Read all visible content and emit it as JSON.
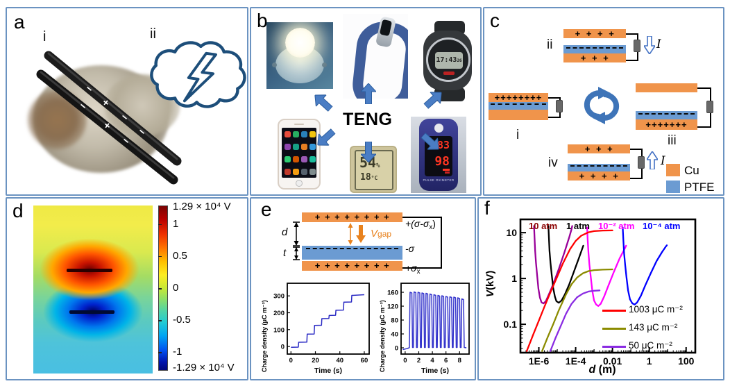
{
  "figure_type": "multi-panel scientific figure",
  "colors": {
    "panel_border": "#6b93c1",
    "cu_orange": "#F0944B",
    "ptfe_blue": "#6B9BD2",
    "arrow_blue": "#4a7dc4",
    "cycle_blue": "#3E74B8",
    "cloud_navy": "#1d4e7a",
    "vgap_orange": "#e8821e"
  },
  "panel_a": {
    "label": "a",
    "sub_i": "i",
    "sub_ii": "ii",
    "rod_charge_minus": "−",
    "rod_charge_plus": "+"
  },
  "panel_b": {
    "label": "b",
    "center_label": "TENG",
    "watch_time": "17:43",
    "watch_seconds": "26",
    "hygro_humidity": "54",
    "hygro_percent": "%",
    "hygro_temp": "18",
    "hygro_unit": "°C",
    "oxi_pulse": "83",
    "oxi_spo2": "98",
    "oxi_label": "PULSE OXIMETER",
    "phone_icon_colors": [
      "#e74c3c",
      "#27ae60",
      "#2980b9",
      "#f1c40f",
      "#8e44ad",
      "#16a085",
      "#e67e22",
      "#3498db",
      "#2ecc71",
      "#d35400",
      "#9b59b6",
      "#1abc9c",
      "#c0392b",
      "#f39c12",
      "#55606c",
      "#7f8c8d"
    ]
  },
  "panel_c": {
    "label": "c",
    "current_label": "I",
    "legend": [
      {
        "label": "Cu",
        "color": "#F0944B"
      },
      {
        "label": "PTFE",
        "color": "#6B9BD2"
      }
    ],
    "states": {
      "i": {
        "label": "i",
        "top_charges": "++++++++"
      },
      "ii": {
        "label": "ii",
        "top_charges": "+ + + +",
        "bottom_charges": "+ + +"
      },
      "iii": {
        "label": "iii",
        "bottom_charges": "+++++++"
      },
      "iv": {
        "label": "iv",
        "top_charges": "+ + +",
        "bottom_charges": "+ + + +"
      }
    }
  },
  "panel_d": {
    "label": "d",
    "colorbar": {
      "top_label": "1.29 × 10⁴ V",
      "tick_labels": [
        "1",
        "0.5",
        "0",
        "-0.5",
        "-1"
      ],
      "bottom_label": "-1.29 × 10⁴ V"
    }
  },
  "panel_e": {
    "label": "e",
    "schematic": {
      "top_charges": "+ + + + + + + +",
      "bottom_charges": "+ + + + + + + +",
      "d_label": "d",
      "t_label": "t",
      "gap_v": "V",
      "gap_sub": "gap",
      "top_label_pre": "+(σ-σ",
      "top_label_sub": "x",
      "top_label_post": ")",
      "mid_label": "-σ",
      "bottom_label_pre": "+σ",
      "bottom_label_sub": "x"
    }
  },
  "chart_data": [
    {
      "id": "charge-steps",
      "type": "line",
      "xlabel": "Time (s)",
      "ylabel": "Charge density (μC m⁻²)",
      "xlim": [
        -3,
        64
      ],
      "ylim": [
        -45,
        375
      ],
      "xticks": [
        0,
        20,
        40,
        60
      ],
      "yticks": [
        0,
        100,
        200,
        300
      ],
      "series": [
        {
          "name": "charge-density-steps",
          "color": "#2b2bc4",
          "points": [
            [
              0,
              -5
            ],
            [
              6,
              -4
            ],
            [
              6.3,
              25
            ],
            [
              13,
              26
            ],
            [
              13.3,
              73
            ],
            [
              19,
              74
            ],
            [
              19.3,
              125
            ],
            [
              25,
              126
            ],
            [
              25.3,
              165
            ],
            [
              31,
              166
            ],
            [
              31.3,
              184
            ],
            [
              36.5,
              185
            ],
            [
              36.8,
              215
            ],
            [
              43,
              216
            ],
            [
              43.3,
              263
            ],
            [
              49.5,
              264
            ],
            [
              49.8,
              303
            ],
            [
              60,
              307
            ]
          ]
        }
      ]
    },
    {
      "id": "charge-pulses",
      "type": "line",
      "xlabel": "Time (s)",
      "ylabel": "Charge density (μC m⁻²)",
      "xlim": [
        -0.6,
        9.4
      ],
      "ylim": [
        -18,
        186
      ],
      "xticks": [
        0,
        2,
        4,
        6,
        8
      ],
      "yticks": [
        0,
        40,
        80,
        120,
        160
      ],
      "pulse_series": {
        "name": "charge-density-pulses",
        "color": "#3535cc",
        "baseline": 0,
        "start": 0.62,
        "period": 0.585,
        "rise": 0.1,
        "high": 0.26,
        "fall": 0.1,
        "peaks": [
          160,
          161,
          160,
          158,
          157,
          155,
          153,
          151,
          150,
          148,
          147,
          146,
          144,
          141
        ]
      }
    },
    {
      "id": "voltage-vs-gap",
      "type": "line",
      "xscale": "log",
      "yscale": "log",
      "xlabel": "d (m)",
      "ylabel": "V(kV)",
      "xlim": [
        1e-07,
        316
      ],
      "ylim": [
        0.024,
        19.5
      ],
      "xticks": [
        {
          "v": 1e-06,
          "label": "1E-6"
        },
        {
          "v": 0.0001,
          "label": "1E-4"
        },
        {
          "v": 0.01,
          "label": "0.01"
        },
        {
          "v": 1,
          "label": "1"
        },
        {
          "v": 100,
          "label": "100"
        }
      ],
      "yticks": [
        {
          "v": 0.1,
          "label": "0.1"
        },
        {
          "v": 1,
          "label": "1"
        },
        {
          "v": 10,
          "label": "10"
        }
      ],
      "pressure_labels": [
        {
          "text": "10 atm",
          "color": "#8b0000"
        },
        {
          "text": "1 atm",
          "color": "#000000"
        },
        {
          "text": "10⁻² atm",
          "color": "#ff00ff"
        },
        {
          "text": "10⁻⁴ atm",
          "color": "#0000ff"
        }
      ],
      "legend": [
        {
          "label": "1003 μC m⁻²",
          "color": "#ff0000"
        },
        {
          "label": "143 μC m⁻²",
          "color": "#8b8b00"
        },
        {
          "label": "50 μC m⁻²",
          "color": "#8a2be2"
        }
      ],
      "series": [
        {
          "name": "paschen-10atm",
          "color": "#990099",
          "points": [
            [
              5.5e-07,
              14
            ],
            [
              5.8e-07,
              8
            ],
            [
              6.3e-07,
              4
            ],
            [
              7e-07,
              2.2
            ],
            [
              8e-07,
              1.2
            ],
            [
              9.5e-07,
              0.6
            ],
            [
              1.15e-06,
              0.38
            ],
            [
              1.4e-06,
              0.3
            ],
            [
              1.8e-06,
              0.285
            ],
            [
              2.4e-06,
              0.32
            ],
            [
              3.5e-06,
              0.45
            ],
            [
              6e-06,
              0.75
            ],
            [
              1.2e-05,
              1.6
            ],
            [
              2.5e-05,
              3.8
            ],
            [
              4.5e-05,
              8
            ],
            [
              6e-05,
              12
            ],
            [
              6.5e-05,
              14
            ]
          ]
        },
        {
          "name": "paschen-1atm",
          "color": "#000000",
          "points": [
            [
              3.3e-06,
              14
            ],
            [
              3.5e-06,
              8
            ],
            [
              3.8e-06,
              4
            ],
            [
              4.3e-06,
              2.2
            ],
            [
              5e-06,
              1.2
            ],
            [
              6e-06,
              0.62
            ],
            [
              7.5e-06,
              0.4
            ],
            [
              9e-06,
              0.32
            ],
            [
              1.2e-05,
              0.295
            ],
            [
              1.7e-05,
              0.33
            ],
            [
              2.6e-05,
              0.45
            ],
            [
              4.5e-05,
              0.75
            ],
            [
              8e-05,
              1.4
            ],
            [
              0.00015,
              2.8
            ],
            [
              0.00022,
              4.3
            ],
            [
              0.00026,
              5.2
            ]
          ]
        },
        {
          "name": "paschen-0.01atm",
          "color": "#ff00ff",
          "points": [
            [
              0.00042,
              13
            ],
            [
              0.00045,
              7
            ],
            [
              0.0005,
              3.5
            ],
            [
              0.00056,
              2
            ],
            [
              0.00066,
              1.1
            ],
            [
              0.0008,
              0.55
            ],
            [
              0.001,
              0.33
            ],
            [
              0.0013,
              0.27
            ],
            [
              0.0017,
              0.25
            ],
            [
              0.0023,
              0.28
            ],
            [
              0.0035,
              0.4
            ],
            [
              0.006,
              0.7
            ],
            [
              0.012,
              1.4
            ],
            [
              0.025,
              2.8
            ],
            [
              0.045,
              4.4
            ],
            [
              0.055,
              5.2
            ]
          ]
        },
        {
          "name": "paschen-0.0001atm",
          "color": "#0000ff",
          "points": [
            [
              0.036,
              13
            ],
            [
              0.039,
              7
            ],
            [
              0.043,
              3.5
            ],
            [
              0.049,
              2
            ],
            [
              0.057,
              1.1
            ],
            [
              0.07,
              0.55
            ],
            [
              0.09,
              0.35
            ],
            [
              0.12,
              0.285
            ],
            [
              0.16,
              0.27
            ],
            [
              0.22,
              0.3
            ],
            [
              0.35,
              0.42
            ],
            [
              0.6,
              0.7
            ],
            [
              1.2,
              1.3
            ],
            [
              2.5,
              2.4
            ],
            [
              5,
              3.8
            ],
            [
              8,
              5
            ],
            [
              9,
              5.3
            ]
          ]
        },
        {
          "name": "vgap-1003uCm2",
          "color": "#ff0000",
          "points": [
            [
              2.2e-07,
              0.026
            ],
            [
              5e-07,
              0.06
            ],
            [
              1e-06,
              0.12
            ],
            [
              2e-06,
              0.24
            ],
            [
              5e-06,
              0.58
            ],
            [
              1e-05,
              1.1
            ],
            [
              2e-05,
              2.1
            ],
            [
              5e-05,
              4.4
            ],
            [
              0.0001,
              6.6
            ],
            [
              0.0002,
              8.6
            ],
            [
              0.0005,
              10.2
            ],
            [
              0.001,
              10.8
            ],
            [
              0.003,
              11.1
            ],
            [
              0.01,
              11.2
            ]
          ]
        },
        {
          "name": "vgap-143uCm2",
          "color": "#8b8b00",
          "points": [
            [
              1.5e-06,
              0.026
            ],
            [
              3e-06,
              0.052
            ],
            [
              6e-06,
              0.1
            ],
            [
              1.2e-05,
              0.2
            ],
            [
              3e-05,
              0.45
            ],
            [
              6e-05,
              0.75
            ],
            [
              0.00012,
              1.05
            ],
            [
              0.00025,
              1.3
            ],
            [
              0.0005,
              1.45
            ],
            [
              0.001,
              1.52
            ],
            [
              0.003,
              1.56
            ],
            [
              0.01,
              1.58
            ]
          ]
        },
        {
          "name": "vgap-50uCm2",
          "color": "#8a2be2",
          "points": [
            [
              4.2e-06,
              0.026
            ],
            [
              8e-06,
              0.05
            ],
            [
              1.6e-05,
              0.095
            ],
            [
              3e-05,
              0.17
            ],
            [
              6e-05,
              0.28
            ],
            [
              0.00012,
              0.39
            ],
            [
              0.00025,
              0.47
            ],
            [
              0.0005,
              0.52
            ],
            [
              0.001,
              0.54
            ],
            [
              0.002,
              0.55
            ]
          ]
        }
      ]
    }
  ]
}
